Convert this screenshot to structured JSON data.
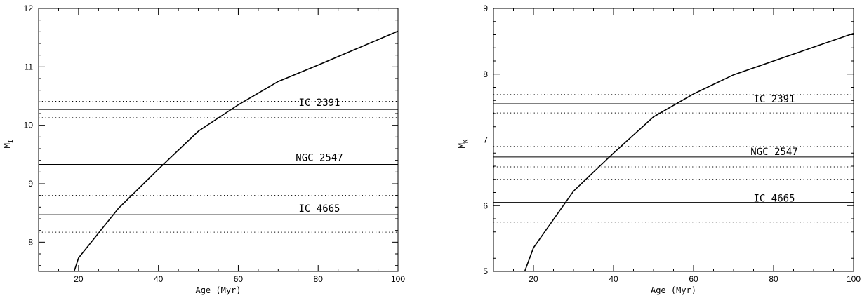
{
  "chart_data": [
    {
      "type": "line",
      "xlabel": "Age (Myr)",
      "ylabel": "M",
      "ylabel_sub": "I",
      "xlim": [
        10,
        100
      ],
      "ylim": [
        7.5,
        12
      ],
      "x_ticks": [
        20,
        40,
        60,
        80,
        100
      ],
      "y_ticks": [
        8,
        9,
        10,
        11,
        12
      ],
      "series": [
        {
          "x": [
            18.9,
            20,
            30,
            40,
            50,
            60,
            70,
            80,
            90,
            100
          ],
          "y": [
            7.5,
            7.73,
            8.58,
            9.25,
            9.9,
            10.35,
            10.75,
            11.03,
            11.32,
            11.61
          ]
        }
      ],
      "clusters": [
        {
          "name": "IC 2391",
          "value": 10.27,
          "lower": 10.13,
          "upper": 10.41
        },
        {
          "name": "NGC 2547",
          "value": 9.33,
          "lower": 9.15,
          "upper": 9.51
        },
        {
          "name": "IC 4665",
          "value": 8.47,
          "lower": 8.17,
          "upper": 8.8
        }
      ]
    },
    {
      "type": "line",
      "xlabel": "Age (Myr)",
      "ylabel": "M",
      "ylabel_sub": "K",
      "xlim": [
        10,
        100
      ],
      "ylim": [
        5,
        9
      ],
      "x_ticks": [
        20,
        40,
        60,
        80,
        100
      ],
      "y_ticks": [
        5,
        6,
        7,
        8,
        9
      ],
      "series": [
        {
          "x": [
            17.8,
            20,
            30,
            40,
            50,
            60,
            70,
            80,
            90,
            100
          ],
          "y": [
            5.0,
            5.36,
            6.22,
            6.8,
            7.35,
            7.7,
            7.99,
            8.2,
            8.41,
            8.62
          ]
        }
      ],
      "clusters": [
        {
          "name": "IC 2391",
          "value": 7.55,
          "lower": 7.41,
          "upper": 7.69
        },
        {
          "name": "NGC 2547",
          "value": 6.74,
          "lower": 6.59,
          "upper": 6.9
        },
        {
          "name": "IC 4665",
          "value": 6.05,
          "lower": 5.75,
          "upper": 6.4
        }
      ]
    }
  ]
}
